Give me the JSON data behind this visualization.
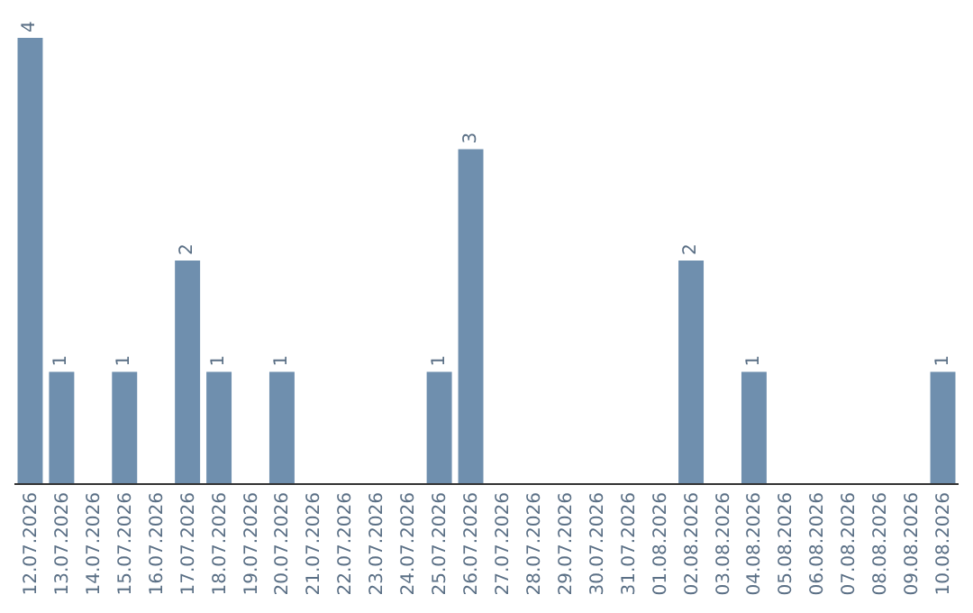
{
  "chart_data": {
    "type": "bar",
    "categories": [
      "12.07.2026",
      "13.07.2026",
      "14.07.2026",
      "15.07.2026",
      "16.07.2026",
      "17.07.2026",
      "18.07.2026",
      "19.07.2026",
      "20.07.2026",
      "21.07.2026",
      "22.07.2026",
      "23.07.2026",
      "24.07.2026",
      "25.07.2026",
      "26.07.2026",
      "27.07.2026",
      "28.07.2026",
      "29.07.2026",
      "30.07.2026",
      "31.07.2026",
      "01.08.2026",
      "02.08.2026",
      "03.08.2026",
      "04.08.2026",
      "05.08.2026",
      "06.08.2026",
      "07.08.2026",
      "08.08.2026",
      "09.08.2026",
      "10.08.2026"
    ],
    "values": [
      4,
      1,
      0,
      1,
      0,
      2,
      1,
      0,
      1,
      0,
      0,
      0,
      0,
      1,
      3,
      0,
      0,
      0,
      0,
      0,
      0,
      2,
      0,
      1,
      0,
      0,
      0,
      0,
      0,
      1
    ],
    "value_labels": [
      "4",
      "1",
      null,
      "1",
      null,
      "2",
      "1",
      null,
      "1",
      null,
      null,
      null,
      null,
      "1",
      "3",
      null,
      null,
      null,
      null,
      null,
      null,
      "2",
      null,
      "1",
      null,
      null,
      null,
      null,
      null,
      "1"
    ],
    "color": "#6f8fae"
  }
}
